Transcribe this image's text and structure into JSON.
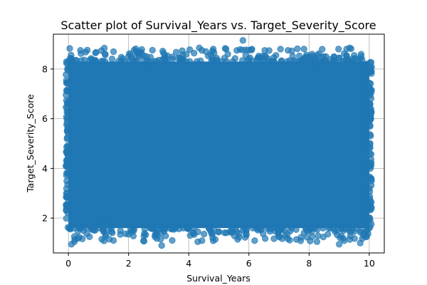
{
  "chart_data": {
    "type": "scatter",
    "title": "Scatter plot of Survival_Years vs. Target_Severity_Score",
    "xlabel": "Survival_Years",
    "ylabel": "Target_Severity_Score",
    "xlim": [
      -0.5,
      10.5
    ],
    "ylim": [
      0.6,
      9.4
    ],
    "xticks": [
      0,
      2,
      4,
      6,
      8,
      10
    ],
    "yticks": [
      2,
      4,
      6,
      8
    ],
    "grid": true,
    "color": "#1f77b4",
    "alpha": 0.7,
    "dense_region": {
      "x": [
        0,
        10
      ],
      "y": [
        1.6,
        8.3
      ]
    },
    "outlier_points": [
      [
        0.1,
        0.95
      ],
      [
        0.2,
        1.05
      ],
      [
        0.7,
        1.25
      ],
      [
        1.5,
        1.1
      ],
      [
        3.1,
        0.9
      ],
      [
        4.3,
        1.05
      ],
      [
        5.6,
        1.45
      ],
      [
        6.8,
        1.6
      ],
      [
        8.1,
        1.25
      ],
      [
        9.0,
        0.95
      ],
      [
        9.7,
        1.0
      ],
      [
        9.9,
        1.5
      ],
      [
        0.05,
        8.1
      ],
      [
        0.4,
        8.75
      ],
      [
        0.9,
        8.65
      ],
      [
        1.5,
        8.7
      ],
      [
        2.6,
        8.5
      ],
      [
        3.2,
        8.55
      ],
      [
        4.35,
        8.85
      ],
      [
        5.3,
        8.6
      ],
      [
        5.8,
        9.15
      ],
      [
        6.1,
        8.8
      ],
      [
        6.9,
        8.55
      ],
      [
        7.05,
        8.8
      ],
      [
        7.3,
        8.75
      ],
      [
        8.1,
        8.6
      ],
      [
        8.8,
        8.35
      ],
      [
        9.0,
        8.45
      ],
      [
        9.35,
        8.85
      ],
      [
        9.5,
        8.55
      ],
      [
        9.9,
        8.2
      ],
      [
        2.0,
        1.35
      ],
      [
        7.2,
        1.3
      ],
      [
        1.2,
        1.9
      ],
      [
        3.5,
        1.6
      ],
      [
        8.7,
        1.75
      ],
      [
        6.3,
        8.45
      ],
      [
        2.1,
        8.45
      ],
      [
        4.8,
        8.35
      ],
      [
        0.9,
        8.35
      ]
    ]
  }
}
